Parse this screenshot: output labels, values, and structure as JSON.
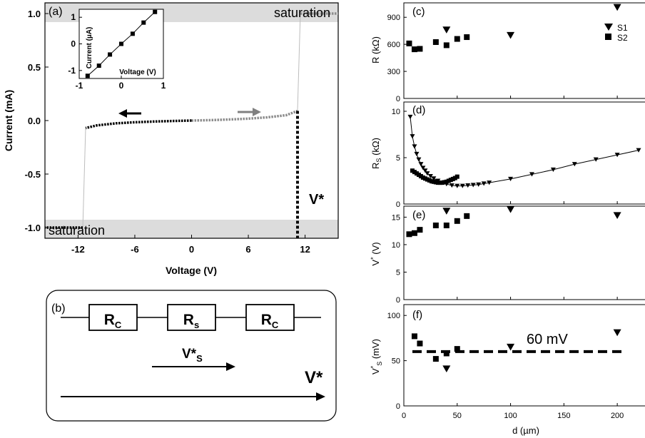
{
  "chart_data": [
    {
      "panel": "(a)",
      "type": "line",
      "xlabel": "Voltage (V)",
      "ylabel": "Current (mA)",
      "xlim": [
        -15.5,
        15.5
      ],
      "ylim": [
        -1.1,
        1.1
      ],
      "xticks": [
        "-12",
        "-6",
        "0",
        "6",
        "12"
      ],
      "yticks": [
        "-1.0",
        "-0.5",
        "0.0",
        "0.5",
        "1.0"
      ],
      "band_labels": [
        "saturation",
        "saturation"
      ],
      "annotation": "V*",
      "series": [
        {
          "branch": "negative sweep",
          "x": [
            0,
            -2,
            -4,
            -6,
            -8,
            -10,
            -11.2,
            -11.5,
            -15.5
          ],
          "y": [
            0.0,
            -0.004,
            -0.009,
            -0.016,
            -0.026,
            -0.045,
            -0.07,
            -1.0,
            -1.0
          ]
        },
        {
          "branch": "positive sweep",
          "x": [
            0,
            2,
            4,
            6,
            8,
            10,
            11.2,
            11.5,
            15.5
          ],
          "y": [
            0.0,
            0.004,
            0.01,
            0.018,
            0.03,
            0.05,
            0.09,
            1.0,
            1.0
          ]
        }
      ],
      "vstar_x": 11.2
    },
    {
      "panel": "inset",
      "type": "scatter",
      "xlabel": "Voltage (V)",
      "ylabel": "Current (µA)",
      "xlim": [
        -1,
        1
      ],
      "ylim": [
        -1.3,
        1.3
      ],
      "xticks": [
        "-1",
        "0",
        "1"
      ],
      "yticks": [
        "-1",
        "0",
        "1"
      ],
      "x": [
        -0.8,
        -0.53,
        -0.27,
        0,
        0.27,
        0.53,
        0.8
      ],
      "y": [
        -1.2,
        -0.82,
        -0.4,
        0.0,
        0.38,
        0.8,
        1.2
      ]
    },
    {
      "panel": "(c)",
      "type": "scatter",
      "ylabel": "R (kΩ)",
      "ylim": [
        0,
        1060
      ],
      "yticks": [
        "0",
        "300",
        "600",
        "900"
      ],
      "series": [
        {
          "name": "S1",
          "marker": "triangle",
          "x": [
            40,
            100,
            200
          ],
          "y": [
            760,
            700,
            1010
          ]
        },
        {
          "name": "S2",
          "marker": "square",
          "x": [
            5,
            10,
            15,
            30,
            40,
            50,
            59
          ],
          "y": [
            610,
            545,
            550,
            625,
            590,
            660,
            680
          ]
        }
      ]
    },
    {
      "panel": "(d)",
      "type": "line",
      "ylabel": "RS (kΩ)",
      "ylim": [
        0,
        11
      ],
      "yticks": [
        "0",
        "5",
        "10"
      ],
      "series": [
        {
          "name": "S1",
          "marker": "triangle",
          "x": [
            6,
            8,
            10,
            12,
            14,
            16,
            18,
            20,
            22,
            25,
            28,
            32,
            36,
            40,
            45,
            50,
            55,
            60,
            65,
            70,
            75,
            80,
            100,
            120,
            140,
            160,
            180,
            200,
            220
          ],
          "y": [
            9.4,
            7.3,
            6.2,
            5.4,
            4.8,
            4.3,
            3.9,
            3.6,
            3.3,
            3.0,
            2.75,
            2.5,
            2.3,
            2.15,
            2.0,
            1.95,
            1.95,
            2.0,
            2.05,
            2.1,
            2.2,
            2.3,
            2.7,
            3.2,
            3.7,
            4.3,
            4.8,
            5.3,
            5.8
          ]
        },
        {
          "name": "S2",
          "marker": "square",
          "x": [
            8,
            10,
            12,
            14,
            16,
            18,
            20,
            22,
            24,
            26,
            28,
            30,
            32,
            34,
            36,
            38,
            40,
            42,
            44,
            46,
            48,
            50
          ],
          "y": [
            3.6,
            3.45,
            3.3,
            3.15,
            3.0,
            2.85,
            2.75,
            2.65,
            2.55,
            2.45,
            2.4,
            2.35,
            2.3,
            2.3,
            2.3,
            2.35,
            2.4,
            2.5,
            2.6,
            2.7,
            2.8,
            2.95
          ]
        }
      ]
    },
    {
      "panel": "(e)",
      "type": "scatter",
      "ylabel": "V* (V)",
      "ylim": [
        0,
        17
      ],
      "yticks": [
        "0",
        "5",
        "10",
        "15"
      ],
      "series": [
        {
          "name": "S1",
          "marker": "triangle",
          "x": [
            40,
            100,
            200
          ],
          "y": [
            16.1,
            16.4,
            15.3
          ]
        },
        {
          "name": "S2",
          "marker": "square",
          "x": [
            5,
            10,
            15,
            30,
            40,
            50,
            59
          ],
          "y": [
            11.9,
            12.1,
            12.7,
            13.5,
            13.5,
            14.3,
            15.2
          ]
        }
      ]
    },
    {
      "panel": "(f)",
      "type": "scatter",
      "xlabel": "d (µm)",
      "ylabel": "V*S (mV)",
      "xlim": [
        0,
        230
      ],
      "ylim": [
        0,
        112
      ],
      "xticks": [
        "0",
        "50",
        "100",
        "150",
        "200"
      ],
      "yticks": [
        "0",
        "50",
        "100"
      ],
      "reference_line": {
        "y": 60,
        "label": "60 mV"
      },
      "series": [
        {
          "name": "S1",
          "marker": "triangle",
          "x": [
            40,
            100,
            200
          ],
          "y": [
            41,
            65,
            81
          ]
        },
        {
          "name": "S2",
          "marker": "square",
          "x": [
            10,
            15,
            30,
            40,
            50
          ],
          "y": [
            77,
            69,
            52,
            58,
            63
          ]
        }
      ]
    }
  ],
  "diagram": {
    "panel_label": "(b)",
    "resistors": [
      {
        "main": "R",
        "sub": "C"
      },
      {
        "main": "R",
        "sub": "s"
      },
      {
        "main": "R",
        "sub": "C"
      }
    ],
    "arrow_short": {
      "main": "V*",
      "sub": "S"
    },
    "arrow_long": "V*"
  },
  "panel_labels": {
    "a": "(a)",
    "c": "(c)",
    "d": "(d)",
    "e": "(e)",
    "f": "(f)"
  }
}
